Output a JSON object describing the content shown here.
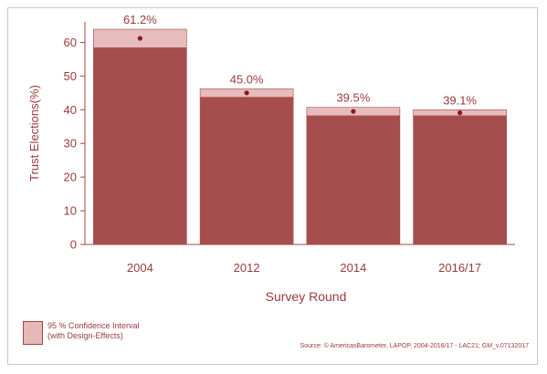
{
  "chart_data": {
    "type": "bar",
    "categories": [
      "2004",
      "2012",
      "2014",
      "2016/17"
    ],
    "values": [
      61.2,
      45.0,
      39.5,
      39.1
    ],
    "value_labels": [
      "61.2%",
      "45.0%",
      "39.5%",
      "39.1%"
    ],
    "ci_lower": [
      58.5,
      43.8,
      38.3,
      38.3
    ],
    "ci_upper": [
      63.9,
      46.2,
      40.7,
      40.0
    ],
    "xlabel": "Survey Round",
    "ylabel": "Trust Elections(%)",
    "ylim": [
      0,
      65
    ],
    "yticks": [
      "0",
      "10",
      "20",
      "30",
      "40",
      "50",
      "60"
    ],
    "grid": false
  },
  "legend": {
    "label": "95 % Confidence Interval\n(with Design-Effects)"
  },
  "source": "Source: © AmericasBarometer, LAPOP, 2004-2016/17 - LAC21; GM_v.07132017",
  "colors": {
    "bar": "#a64e4e",
    "ci": "#e6bcbc",
    "dot": "#8b1a1a",
    "text": "#9b3b3b",
    "axis": "#a04747"
  }
}
